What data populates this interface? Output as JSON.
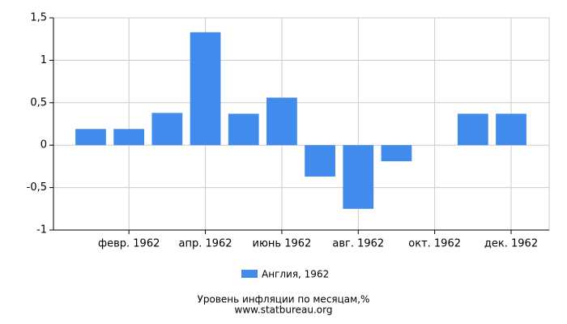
{
  "chart_data": {
    "type": "bar",
    "title": "Уровень инфляции по месяцам,%",
    "subtitle": "www.statbureau.org",
    "categories": [
      null,
      "февр. 1962",
      null,
      "апр. 1962",
      null,
      "июнь 1962",
      null,
      "авг. 1962",
      null,
      "окт. 1962",
      null,
      "дек. 1962"
    ],
    "series": [
      {
        "name": "Англия, 1962",
        "color": "#418bed",
        "values": [
          0.19,
          0.19,
          0.38,
          1.33,
          0.37,
          0.56,
          -0.37,
          -0.75,
          -0.19,
          0,
          0.37,
          0.37
        ]
      }
    ],
    "ylim": [
      -1,
      1.5
    ],
    "yticks": [
      {
        "value": -1,
        "label": "-1"
      },
      {
        "value": -0.5,
        "label": "-0,5"
      },
      0,
      {
        "value": 0.5,
        "label": "0,5"
      },
      1,
      {
        "value": 1.5,
        "label": "1,5"
      }
    ],
    "grid": true,
    "legend": "bottom"
  }
}
